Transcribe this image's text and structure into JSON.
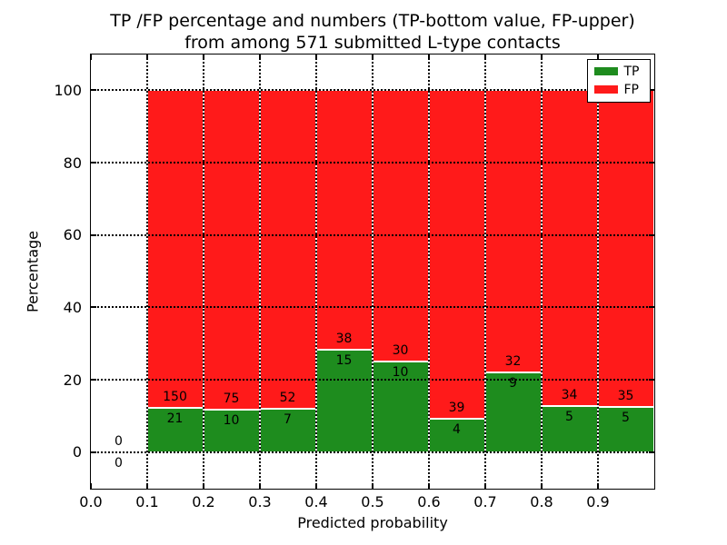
{
  "figure": {
    "title_line1": "TP /FP percentage and numbers (TP-bottom value, FP-upper)",
    "title_line2": "from among 571 submitted L-type contacts"
  },
  "chart_data": {
    "type": "bar",
    "stacked": true,
    "title": "TP /FP percentage and numbers (TP-bottom value, FP-upper) from among 571 submitted L-type contacts",
    "xlabel": "Predicted probability",
    "ylabel": "Percentage",
    "xlim": [
      0.0,
      1.0
    ],
    "ylim": [
      -10,
      110
    ],
    "xtick_values": [
      0.0,
      0.1,
      0.2,
      0.3,
      0.4,
      0.5,
      0.6,
      0.7,
      0.8,
      0.9
    ],
    "xtick_labels": [
      "0.0",
      "0.1",
      "0.2",
      "0.3",
      "0.4",
      "0.5",
      "0.6",
      "0.7",
      "0.8",
      "0.9"
    ],
    "ytick_values": [
      0,
      20,
      40,
      60,
      80,
      100
    ],
    "bin_edges": [
      0.0,
      0.1,
      0.2,
      0.3,
      0.4,
      0.5,
      0.6,
      0.7,
      0.8,
      0.9,
      1.0
    ],
    "series": [
      {
        "name": "TP",
        "color": "#1e8c1e",
        "counts": [
          0,
          21,
          10,
          7,
          15,
          10,
          4,
          9,
          5,
          5
        ]
      },
      {
        "name": "FP",
        "color": "#ff1a1a",
        "counts": [
          0,
          150,
          75,
          52,
          38,
          30,
          39,
          32,
          34,
          35
        ]
      }
    ],
    "tp_percent_of_bin": [
      0,
      12.3,
      11.8,
      11.9,
      28.3,
      25.0,
      9.3,
      22.0,
      12.8,
      12.5
    ],
    "bar_total_percent": 100,
    "total_contacts": 571,
    "grid": {
      "on": true,
      "style": "dotted",
      "color": "#000000"
    },
    "legend": {
      "position": "upper-right",
      "entries": [
        {
          "label": "TP",
          "color": "#1e8c1e"
        },
        {
          "label": "FP",
          "color": "#ff1a1a"
        }
      ]
    }
  }
}
